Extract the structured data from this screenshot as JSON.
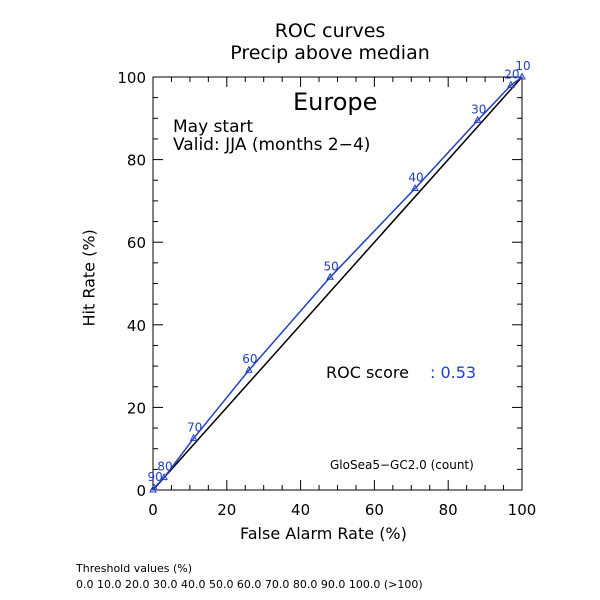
{
  "header": {
    "title_line1": "ROC curves",
    "title_line2": "Precip above median"
  },
  "panel": {
    "region": "Europe",
    "start": "May start",
    "valid": "Valid: JJA (months 2−4)",
    "score_label": "ROC score",
    "score_value": ": 0.53",
    "model": "GloSea5−GC2.0 (count)"
  },
  "footer": {
    "threshold_title": "Threshold values (%)",
    "threshold_values": "0.0 10.0 20.0 30.0 40.0 50.0 60.0 70.0 80.0 90.0 100.0 (>100)"
  },
  "chart_data": {
    "type": "line",
    "xlabel": "False Alarm Rate (%)",
    "ylabel": "Hit Rate (%)",
    "xlim": [
      0,
      100
    ],
    "ylim": [
      0,
      100
    ],
    "xticks": [
      0,
      20,
      40,
      60,
      80,
      100
    ],
    "yticks": [
      0,
      20,
      40,
      60,
      80,
      100
    ],
    "grid": false,
    "colors": {
      "curve": "#1f3fc4",
      "diagonal": "#000000",
      "axes": "#000000"
    },
    "diagonal": {
      "x": [
        0,
        100
      ],
      "y": [
        0,
        100
      ]
    },
    "series": [
      {
        "x": [
          0,
          0.3,
          3,
          11,
          26,
          48,
          71,
          88,
          97,
          100
        ],
        "y": [
          0,
          0.5,
          3,
          12.5,
          29,
          51.5,
          73,
          89.5,
          98,
          100
        ],
        "labels": [
          "",
          "90",
          "80",
          "70",
          "60",
          "50",
          "40",
          "30",
          "20",
          "10"
        ]
      }
    ]
  }
}
